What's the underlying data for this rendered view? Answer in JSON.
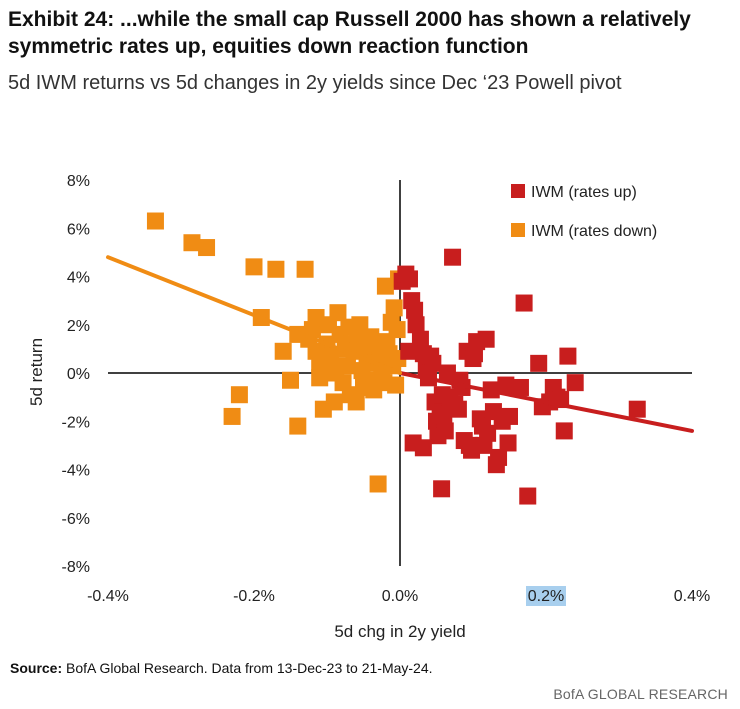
{
  "title": "Exhibit 24: ...while the small cap Russell 2000 has shown a relatively symmetric rates up, equities down reaction function",
  "subtitle": "5d IWM returns vs 5d changes in 2y yields since Dec ‘23 Powell pivot",
  "source_label": "Source:",
  "source_text": " BofA Global Research. Data from 13-Dec-23 to 21-May-24.",
  "brand": "BofA GLOBAL RESEARCH",
  "colors": {
    "rates_up": "#c81e1e",
    "rates_down": "#f08c14",
    "axis": "#000000"
  },
  "chart_data": {
    "type": "scatter",
    "xlabel": "5d chg in 2y yield",
    "ylabel": "5d return",
    "xlim": [
      -0.4,
      0.4
    ],
    "ylim": [
      -8,
      8
    ],
    "xticks": [
      -0.4,
      -0.2,
      0.0,
      0.2,
      0.4
    ],
    "xtick_labels": [
      "-0.4%",
      "-0.2%",
      "0.0%",
      "0.2%",
      "0.4%"
    ],
    "yticks": [
      8,
      6,
      4,
      2,
      0,
      -2,
      -4,
      -6,
      -8
    ],
    "ytick_labels": [
      "8%",
      "6%",
      "4%",
      "2%",
      "0%",
      "-2%",
      "-4%",
      "-6%",
      "-8%"
    ],
    "legend_position": "top-right",
    "series": [
      {
        "name": "IWM (rates up)",
        "color": "#c81e1e",
        "points": [
          [
            0.003,
            3.8
          ],
          [
            0.008,
            4.1
          ],
          [
            0.013,
            3.9
          ],
          [
            0.016,
            3.0
          ],
          [
            0.02,
            2.6
          ],
          [
            0.022,
            2.0
          ],
          [
            0.028,
            1.4
          ],
          [
            0.032,
            0.8
          ],
          [
            0.036,
            0.2
          ],
          [
            0.039,
            -0.2
          ],
          [
            0.045,
            0.4
          ],
          [
            0.048,
            -1.2
          ],
          [
            0.05,
            -2.0
          ],
          [
            0.052,
            -2.6
          ],
          [
            0.055,
            -1.6
          ],
          [
            0.058,
            -0.9
          ],
          [
            0.06,
            -1.8
          ],
          [
            0.062,
            -2.4
          ],
          [
            0.068,
            -1.0
          ],
          [
            0.072,
            4.8
          ],
          [
            0.075,
            -1.3
          ],
          [
            0.08,
            -1.5
          ],
          [
            0.085,
            -0.6
          ],
          [
            0.088,
            -2.8
          ],
          [
            0.092,
            0.9
          ],
          [
            0.095,
            -3.0
          ],
          [
            0.098,
            -3.2
          ],
          [
            0.1,
            0.6
          ],
          [
            0.102,
            0.8
          ],
          [
            0.105,
            1.3
          ],
          [
            0.11,
            -1.9
          ],
          [
            0.113,
            -2.2
          ],
          [
            0.115,
            -3.0
          ],
          [
            0.118,
            1.4
          ],
          [
            0.12,
            -2.5
          ],
          [
            0.125,
            -0.7
          ],
          [
            0.128,
            -1.6
          ],
          [
            0.132,
            -3.8
          ],
          [
            0.135,
            -3.5
          ],
          [
            0.14,
            -2.0
          ],
          [
            0.145,
            -0.5
          ],
          [
            0.148,
            -2.9
          ],
          [
            0.15,
            -1.8
          ],
          [
            0.165,
            -0.6
          ],
          [
            0.17,
            2.9
          ],
          [
            0.175,
            -5.1
          ],
          [
            0.19,
            0.4
          ],
          [
            0.195,
            -1.4
          ],
          [
            0.205,
            -1.2
          ],
          [
            0.21,
            -0.6
          ],
          [
            0.215,
            -1.0
          ],
          [
            0.22,
            -1.1
          ],
          [
            0.225,
            -2.4
          ],
          [
            0.23,
            0.7
          ],
          [
            0.24,
            -0.4
          ],
          [
            0.325,
            -1.5
          ],
          [
            0.032,
            -3.1
          ],
          [
            0.018,
            -2.9
          ],
          [
            0.057,
            -4.8
          ],
          [
            0.042,
            0.7
          ],
          [
            0.065,
            0.0
          ],
          [
            0.082,
            -0.3
          ],
          [
            0.012,
            0.9
          ]
        ]
      },
      {
        "name": "IWM (rates down)",
        "color": "#f08c14",
        "points": [
          [
            -0.335,
            6.3
          ],
          [
            -0.285,
            5.4
          ],
          [
            -0.265,
            5.2
          ],
          [
            -0.23,
            -1.8
          ],
          [
            -0.22,
            -0.9
          ],
          [
            -0.2,
            4.4
          ],
          [
            -0.19,
            2.3
          ],
          [
            -0.17,
            4.3
          ],
          [
            -0.16,
            0.9
          ],
          [
            -0.15,
            -0.3
          ],
          [
            -0.14,
            1.6
          ],
          [
            -0.14,
            -2.2
          ],
          [
            -0.13,
            4.3
          ],
          [
            -0.12,
            1.8
          ],
          [
            -0.115,
            2.3
          ],
          [
            -0.11,
            0.4
          ],
          [
            -0.11,
            -0.2
          ],
          [
            -0.105,
            -1.5
          ],
          [
            -0.1,
            1.2
          ],
          [
            -0.098,
            2.0
          ],
          [
            -0.095,
            0.7
          ],
          [
            -0.09,
            -1.2
          ],
          [
            -0.085,
            2.5
          ],
          [
            -0.082,
            1.6
          ],
          [
            -0.078,
            -0.4
          ],
          [
            -0.075,
            1.0
          ],
          [
            -0.072,
            0.3
          ],
          [
            -0.07,
            1.9
          ],
          [
            -0.066,
            1.2
          ],
          [
            -0.063,
            0.9
          ],
          [
            -0.06,
            -1.2
          ],
          [
            -0.058,
            1.6
          ],
          [
            -0.055,
            2.0
          ],
          [
            -0.052,
            0.1
          ],
          [
            -0.05,
            -0.6
          ],
          [
            -0.048,
            1.2
          ],
          [
            -0.045,
            0.6
          ],
          [
            -0.042,
            -0.3
          ],
          [
            -0.04,
            1.5
          ],
          [
            -0.036,
            -0.7
          ],
          [
            -0.033,
            0.9
          ],
          [
            -0.03,
            -4.6
          ],
          [
            -0.028,
            0.5
          ],
          [
            -0.025,
            0.1
          ],
          [
            -0.022,
            -0.4
          ],
          [
            -0.02,
            3.6
          ],
          [
            -0.018,
            1.3
          ],
          [
            -0.015,
            0.8
          ],
          [
            -0.012,
            2.1
          ],
          [
            -0.01,
            0.3
          ],
          [
            -0.008,
            2.7
          ],
          [
            -0.006,
            -0.5
          ],
          [
            -0.004,
            1.8
          ],
          [
            -0.003,
            0.6
          ],
          [
            -0.002,
            3.9
          ],
          [
            -0.088,
            0.0
          ],
          [
            -0.068,
            -0.9
          ],
          [
            -0.125,
            1.4
          ],
          [
            -0.095,
            0.2
          ],
          [
            -0.045,
            0.4
          ],
          [
            -0.115,
            0.9
          ]
        ]
      }
    ],
    "trendlines": [
      {
        "series": "IWM (rates up)",
        "color": "#c81e1e",
        "x": [
          0.0,
          0.4
        ],
        "y": [
          0.0,
          -2.4
        ]
      },
      {
        "series": "IWM (rates down)",
        "color": "#f08c14",
        "x": [
          -0.4,
          0.0
        ],
        "y": [
          4.8,
          0.0
        ]
      }
    ]
  }
}
